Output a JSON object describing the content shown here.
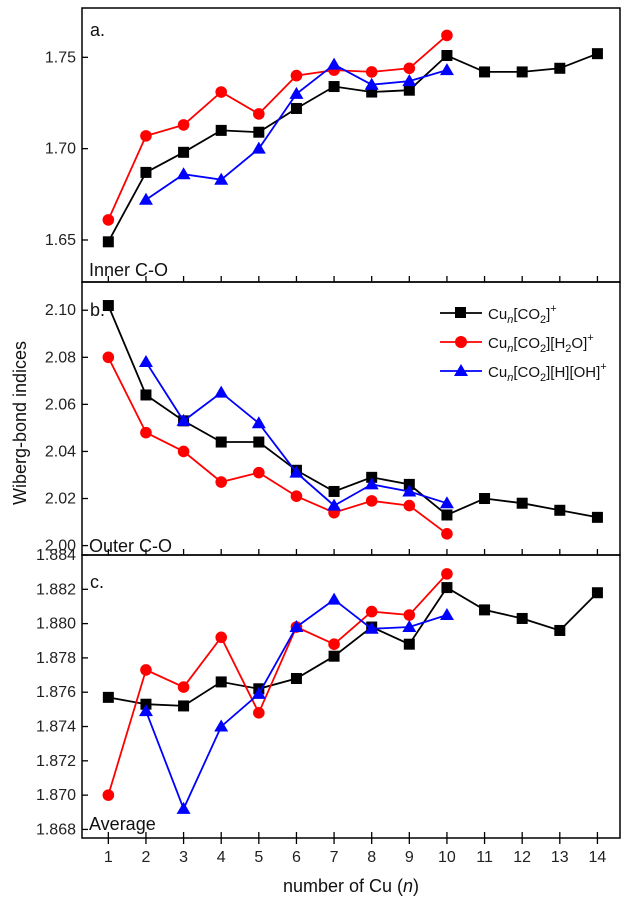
{
  "chart_data": [
    {
      "type": "line",
      "panel_label": "a.",
      "annotation": "Inner C-O",
      "ylim": [
        1.627,
        1.777
      ],
      "yticks": [
        "1.65",
        "1.70",
        "1.75"
      ],
      "series": [
        {
          "name": "Cu_n[CO2]+",
          "color": "#000000",
          "marker": "square",
          "x": [
            1,
            2,
            3,
            4,
            5,
            6,
            7,
            8,
            9,
            10,
            11,
            12,
            13,
            14
          ],
          "y": [
            1.649,
            1.687,
            1.698,
            1.71,
            1.709,
            1.722,
            1.734,
            1.731,
            1.732,
            1.751,
            1.742,
            1.742,
            1.744,
            1.752
          ]
        },
        {
          "name": "Cu_n[CO2][H2O]+",
          "color": "#ff0000",
          "marker": "circle",
          "x": [
            1,
            2,
            3,
            4,
            5,
            6,
            7,
            8,
            9,
            10
          ],
          "y": [
            1.661,
            1.707,
            1.713,
            1.731,
            1.719,
            1.74,
            1.743,
            1.742,
            1.744,
            1.762
          ]
        },
        {
          "name": "Cu_n[CO2][H][OH]+",
          "color": "#0000ff",
          "marker": "triangle",
          "x": [
            2,
            3,
            4,
            5,
            6,
            7,
            8,
            9,
            10
          ],
          "y": [
            1.672,
            1.686,
            1.683,
            1.7,
            1.73,
            1.746,
            1.735,
            1.737,
            1.743
          ]
        }
      ]
    },
    {
      "type": "line",
      "panel_label": "b.",
      "annotation": "Outer C-O",
      "ylim": [
        1.996,
        2.112
      ],
      "yticks": [
        "2.00",
        "2.02",
        "2.04",
        "2.06",
        "2.08",
        "2.10"
      ],
      "series": [
        {
          "name": "Cu_n[CO2]+",
          "color": "#000000",
          "marker": "square",
          "x": [
            1,
            2,
            3,
            4,
            5,
            6,
            7,
            8,
            9,
            10,
            11,
            12,
            13,
            14
          ],
          "y": [
            2.102,
            2.064,
            2.053,
            2.044,
            2.044,
            2.032,
            2.023,
            2.029,
            2.026,
            2.013,
            2.02,
            2.018,
            2.015,
            2.012
          ]
        },
        {
          "name": "Cu_n[CO2][H2O]+",
          "color": "#ff0000",
          "marker": "circle",
          "x": [
            1,
            2,
            3,
            4,
            5,
            6,
            7,
            8,
            9,
            10
          ],
          "y": [
            2.08,
            2.048,
            2.04,
            2.027,
            2.031,
            2.021,
            2.014,
            2.019,
            2.017,
            2.005
          ]
        },
        {
          "name": "Cu_n[CO2][H][OH]+",
          "color": "#0000ff",
          "marker": "triangle",
          "x": [
            2,
            3,
            4,
            5,
            6,
            7,
            8,
            9,
            10
          ],
          "y": [
            2.078,
            2.053,
            2.065,
            2.052,
            2.031,
            2.017,
            2.026,
            2.023,
            2.018
          ]
        }
      ]
    },
    {
      "type": "line",
      "panel_label": "c.",
      "annotation": "Average",
      "ylim": [
        1.8675,
        1.884
      ],
      "yticks": [
        "1.868",
        "1.870",
        "1.872",
        "1.874",
        "1.876",
        "1.878",
        "1.880",
        "1.882",
        "1.884"
      ],
      "series": [
        {
          "name": "Cu_n[CO2]+",
          "color": "#000000",
          "marker": "square",
          "x": [
            1,
            2,
            3,
            4,
            5,
            6,
            7,
            8,
            9,
            10,
            11,
            12,
            13,
            14
          ],
          "y": [
            1.8757,
            1.8753,
            1.8752,
            1.8766,
            1.8762,
            1.8768,
            1.8781,
            1.8798,
            1.8788,
            1.8821,
            1.8808,
            1.8803,
            1.8796,
            1.8818
          ]
        },
        {
          "name": "Cu_n[CO2][H2O]+",
          "color": "#ff0000",
          "marker": "circle",
          "x": [
            1,
            2,
            3,
            4,
            5,
            6,
            7,
            8,
            9,
            10
          ],
          "y": [
            1.87,
            1.8773,
            1.8763,
            1.8792,
            1.8748,
            1.8798,
            1.8788,
            1.8807,
            1.8805,
            1.8829
          ]
        },
        {
          "name": "Cu_n[CO2][H][OH]+",
          "color": "#0000ff",
          "marker": "triangle",
          "x": [
            2,
            3,
            4,
            5,
            6,
            7,
            8,
            9,
            10
          ],
          "y": [
            1.8749,
            1.8692,
            1.874,
            1.8759,
            1.8798,
            1.8814,
            1.8797,
            1.8798,
            1.8805
          ]
        }
      ]
    }
  ],
  "x_axis": {
    "title_prefix": "number of Cu (",
    "title_var": "n",
    "title_suffix": ")",
    "ticks": [
      "1",
      "2",
      "3",
      "4",
      "5",
      "6",
      "7",
      "8",
      "9",
      "10",
      "11",
      "12",
      "13",
      "14"
    ]
  },
  "y_axis": {
    "title": "Wiberg-bond indices"
  },
  "legend": {
    "entries": [
      {
        "base": "Cu",
        "n": "n",
        "rest": "[CO",
        "sub": "2",
        "rest2": "]",
        "sup": "+",
        "color": "#000000",
        "marker": "square"
      },
      {
        "base": "Cu",
        "n": "n",
        "rest": "[CO",
        "sub": "2",
        "rest2": "][H",
        "sub2": "2",
        "rest3": "O]",
        "sup": "+",
        "color": "#ff0000",
        "marker": "circle"
      },
      {
        "base": "Cu",
        "n": "n",
        "rest": "[CO",
        "sub": "2",
        "rest2": "][H][OH]",
        "sup": "+",
        "color": "#0000ff",
        "marker": "triangle"
      }
    ]
  }
}
